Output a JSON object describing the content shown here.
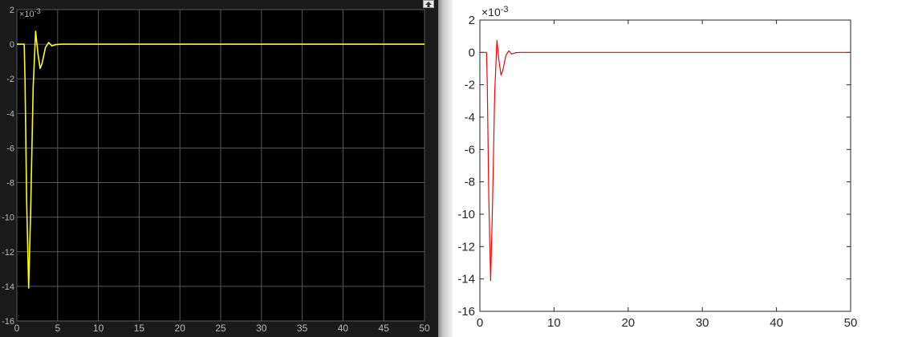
{
  "scope_panel": {
    "expand_icon": "expand-icon",
    "colors": {
      "background": "#000000",
      "grid": "#595959",
      "axis_text": "#b9b9b9",
      "line": "#ffff00"
    }
  },
  "figure_panel": {
    "colors": {
      "background": "#ffffff",
      "axis": "#262626",
      "line": "#ff0000"
    }
  },
  "chart_data": [
    {
      "type": "line",
      "style": "scope",
      "grid": true,
      "xlim": [
        0,
        50
      ],
      "ylim": [
        -16,
        2
      ],
      "exponent_label": "×10",
      "exponent_power": "-3",
      "x_ticks": [
        0,
        5,
        10,
        15,
        20,
        25,
        30,
        35,
        40,
        45,
        50
      ],
      "y_ticks": [
        2,
        0,
        -2,
        -4,
        -6,
        -8,
        -10,
        -12,
        -14,
        -16
      ],
      "x_tick_labels": [
        "0",
        "5",
        "10",
        "15",
        "20",
        "25",
        "30",
        "35",
        "40",
        "45",
        "50"
      ],
      "y_tick_labels": [
        "2",
        "0",
        "-2",
        "-4",
        "-6",
        "-8",
        "-10",
        "-12",
        "-14",
        "-16"
      ],
      "series": [
        {
          "x": [
            0,
            0.9,
            1.0,
            1.2,
            1.45,
            1.7,
            2.0,
            2.3,
            2.6,
            2.85,
            3.1,
            3.5,
            3.9,
            4.3,
            4.8,
            5.5,
            6.5,
            50
          ],
          "y": [
            0,
            0,
            -2,
            -9,
            -14.1,
            -9.5,
            -2.5,
            0.75,
            -0.6,
            -1.4,
            -1.1,
            -0.2,
            0.1,
            -0.1,
            -0.02,
            0,
            0,
            0
          ]
        }
      ]
    },
    {
      "type": "line",
      "style": "figure",
      "grid": false,
      "xlim": [
        0,
        50
      ],
      "ylim": [
        -16,
        2
      ],
      "exponent_label": "×10",
      "exponent_power": "-3",
      "x_ticks": [
        0,
        10,
        20,
        30,
        40,
        50
      ],
      "y_ticks": [
        2,
        0,
        -2,
        -4,
        -6,
        -8,
        -10,
        -12,
        -14,
        -16
      ],
      "x_tick_labels": [
        "0",
        "10",
        "20",
        "30",
        "40",
        "50"
      ],
      "y_tick_labels": [
        "2",
        "0",
        "-2",
        "-4",
        "-6",
        "-8",
        "-10",
        "-12",
        "-14",
        "-16"
      ],
      "series": [
        {
          "x": [
            0,
            0.9,
            1.0,
            1.2,
            1.45,
            1.7,
            2.0,
            2.3,
            2.6,
            2.85,
            3.1,
            3.5,
            3.9,
            4.3,
            4.8,
            5.5,
            6.5,
            50
          ],
          "y": [
            0,
            0,
            -2,
            -9,
            -14.1,
            -9.5,
            -2.5,
            0.75,
            -0.6,
            -1.4,
            -1.1,
            -0.2,
            0.1,
            -0.1,
            -0.02,
            0,
            0,
            0
          ]
        }
      ]
    }
  ]
}
